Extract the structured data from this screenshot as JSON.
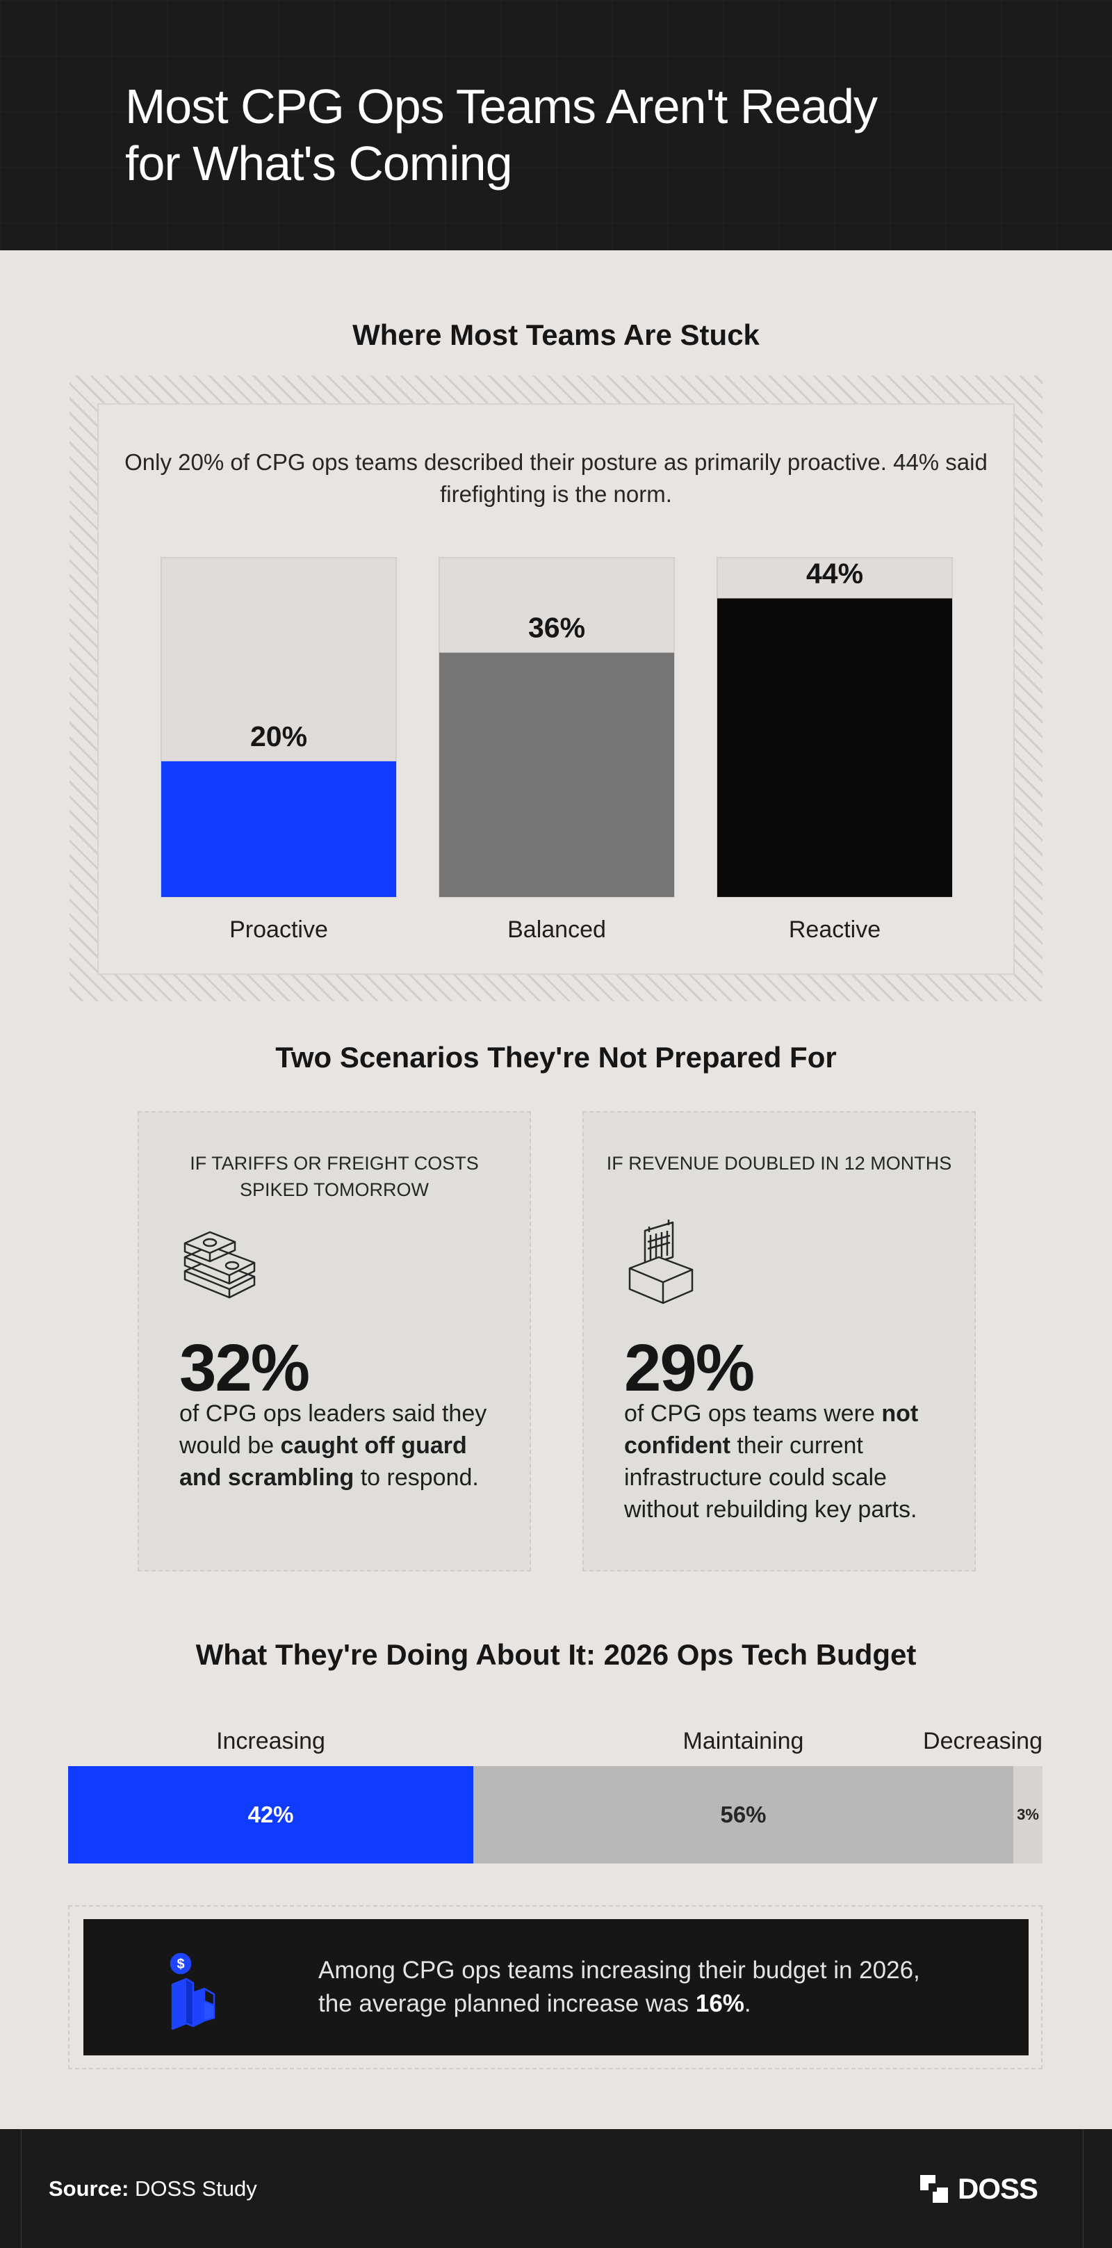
{
  "header": {
    "title": "Most CPG Ops Teams Aren't Ready for What's Coming"
  },
  "section1": {
    "title": "Where Most Teams Are Stuck",
    "description": "Only 20% of CPG ops teams described their posture as primarily proactive. 44% said firefighting is the norm."
  },
  "chart_data": [
    {
      "type": "bar",
      "categories": [
        "Proactive",
        "Balanced",
        "Reactive"
      ],
      "values": [
        20,
        36,
        44
      ],
      "value_labels": [
        "20%",
        "36%",
        "44%"
      ],
      "ylim": [
        0,
        50
      ],
      "colors": [
        "#0f3bff",
        "#757575",
        "#0a0a0a"
      ],
      "track_color": "#dfdcda",
      "title": "",
      "xlabel": "",
      "ylabel": "",
      "grid": false
    },
    {
      "type": "bar",
      "orientation": "horizontal-stacked",
      "title": "What They're Doing About It: 2026 Ops Tech Budget",
      "categories": [
        "Increasing",
        "Maintaining",
        "Decreasing"
      ],
      "values": [
        42,
        56,
        3
      ],
      "value_labels": [
        "42%",
        "56%",
        "3%"
      ],
      "colors": [
        "#0f3bff",
        "#b8b8b8",
        "#d6d3d0"
      ],
      "grid": false
    }
  ],
  "section2": {
    "title": "Two Scenarios They're Not Prepared For",
    "cards": [
      {
        "eyebrow": "IF TARIFFS OR FREIGHT COSTS SPIKED TOMORROW",
        "icon": "cash-stack-icon",
        "stat": "32%",
        "text_before": "of CPG ops leaders said they would be ",
        "text_bold": "caught off guard and scrambling",
        "text_after": " to respond."
      },
      {
        "eyebrow": "IF REVENUE DOUBLED IN 12 MONTHS",
        "icon": "warehouse-box-icon",
        "stat": "29%",
        "text_before": "of CPG ops teams were ",
        "text_bold": "not confident",
        "text_after": " their current infrastructure could scale without rebuilding key parts."
      }
    ]
  },
  "section3": {
    "title": "What They're Doing About It: 2026 Ops Tech Budget"
  },
  "callout": {
    "icon": "dollar-growth-icon",
    "text_before": "Among CPG ops teams increasing their budget in 2026, the average planned increase was ",
    "text_bold": "16%",
    "text_after": "."
  },
  "footer": {
    "source_label": "Source:",
    "source_value": " DOSS Study",
    "logo_text": "DOSS"
  }
}
